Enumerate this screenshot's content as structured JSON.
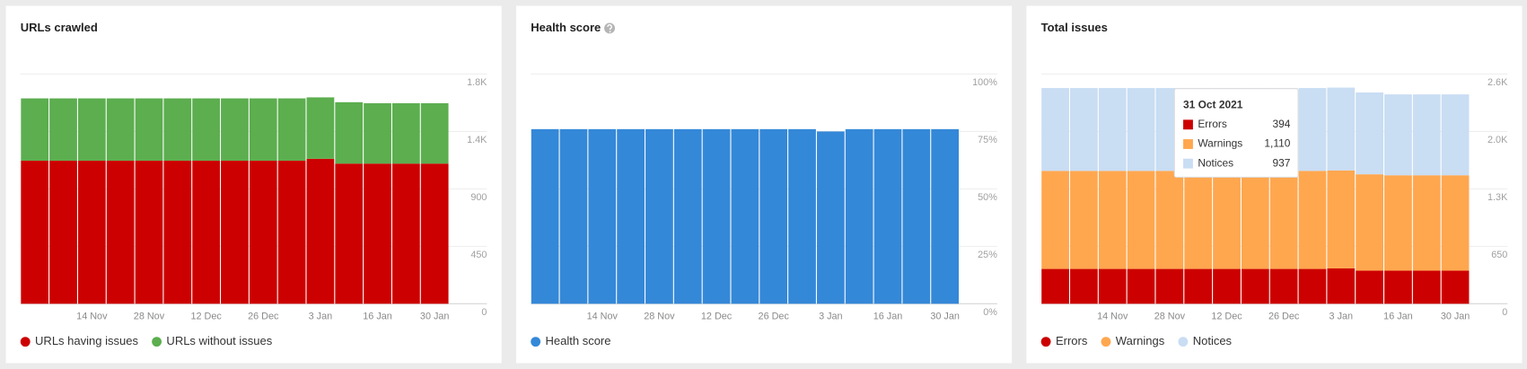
{
  "chart_data": [
    {
      "type": "bar",
      "stacked": true,
      "title": "URLs crawled",
      "categories": [
        null,
        null,
        "14 Nov",
        null,
        "28 Nov",
        null,
        "12 Dec",
        null,
        "26 Dec",
        null,
        "3 Jan",
        null,
        "16 Jan",
        null,
        "30 Jan"
      ],
      "series": [
        {
          "name": "URLs having issues",
          "color": "#cc0000",
          "values": [
            1121,
            1121,
            1121,
            1121,
            1121,
            1121,
            1121,
            1121,
            1121,
            1121,
            1136,
            1098,
            1098,
            1098,
            1098
          ]
        },
        {
          "name": "URLs without issues",
          "color": "#5cae4f",
          "values": [
            488,
            488,
            488,
            488,
            488,
            488,
            488,
            488,
            488,
            488,
            481,
            481,
            473,
            473,
            473
          ]
        }
      ],
      "ylim": [
        0,
        1800
      ],
      "yticks": [
        0,
        450,
        900,
        {
          "value": 1350,
          "label": "1.4K"
        },
        {
          "value": 1800,
          "label": "1.8K"
        }
      ],
      "grid": true
    },
    {
      "type": "bar",
      "stacked": false,
      "title": "Health score",
      "categories": [
        null,
        null,
        "14 Nov",
        null,
        "28 Nov",
        null,
        "12 Dec",
        null,
        "26 Dec",
        null,
        "3 Jan",
        null,
        "16 Jan",
        null,
        "30 Jan"
      ],
      "series": [
        {
          "name": "Health score",
          "color": "#3488d8",
          "values": [
            76,
            76,
            76,
            76,
            76,
            76,
            76,
            76,
            76,
            76,
            75,
            76,
            76,
            76,
            76
          ]
        }
      ],
      "ylim": [
        0,
        100
      ],
      "yticks": [
        {
          "value": 0,
          "label": "0%"
        },
        {
          "value": 25,
          "label": "25%"
        },
        {
          "value": 50,
          "label": "50%"
        },
        {
          "value": 75,
          "label": "75%"
        },
        {
          "value": 100,
          "label": "100%"
        }
      ],
      "grid": true
    },
    {
      "type": "bar",
      "stacked": true,
      "title": "Total issues",
      "categories": [
        null,
        null,
        "14 Nov",
        null,
        "28 Nov",
        null,
        "12 Dec",
        null,
        "26 Dec",
        null,
        "3 Jan",
        null,
        "16 Jan",
        null,
        "30 Jan"
      ],
      "series": [
        {
          "name": "Errors",
          "color": "#cc0000",
          "values": [
            394,
            394,
            394,
            394,
            394,
            394,
            394,
            394,
            394,
            394,
            400,
            375,
            375,
            375,
            375
          ]
        },
        {
          "name": "Warnings",
          "color": "#ffa74f",
          "values": [
            1110,
            1110,
            1110,
            1110,
            1110,
            1110,
            1110,
            1110,
            1110,
            1110,
            1109,
            1090,
            1079,
            1079,
            1079
          ]
        },
        {
          "name": "Notices",
          "color": "#c9ddf3",
          "values": [
            937,
            937,
            937,
            937,
            937,
            937,
            937,
            937,
            937,
            937,
            937,
            926,
            915,
            915,
            915
          ]
        }
      ],
      "ylim": [
        0,
        2600
      ],
      "yticks": [
        0,
        650,
        {
          "value": 1300,
          "label": "1.3K"
        },
        {
          "value": 1950,
          "label": "2.0K"
        },
        {
          "value": 2600,
          "label": "2.6K"
        }
      ],
      "grid": true,
      "tooltip": {
        "title": "31 Oct 2021",
        "labels": [
          "394",
          "1,110",
          "937"
        ]
      }
    }
  ]
}
